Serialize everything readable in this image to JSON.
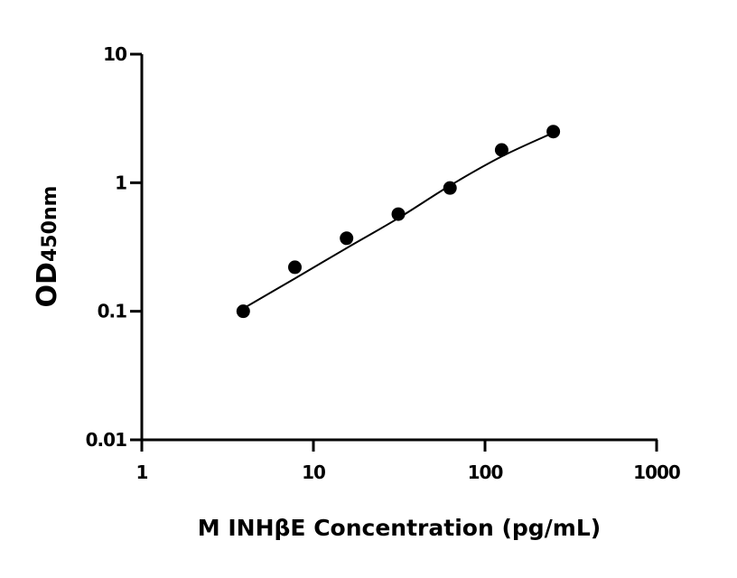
{
  "chart_data": {
    "type": "scatter",
    "title": "",
    "xlabel": "M INHβE Concentration (pg/mL)",
    "ylabel_main": "OD",
    "ylabel_sub": "450nm",
    "x_scale": "log",
    "y_scale": "log",
    "xlim": [
      1,
      1000
    ],
    "ylim": [
      0.01,
      10
    ],
    "x_ticks": [
      1,
      10,
      100,
      1000
    ],
    "x_tick_labels": [
      "1",
      "10",
      "100",
      "1000"
    ],
    "y_ticks": [
      0.01,
      0.1,
      1,
      10
    ],
    "y_tick_labels": [
      "0.01",
      "0.1",
      "1",
      "10"
    ],
    "grid": false,
    "legend": "none",
    "points": {
      "x": [
        3.9,
        7.8,
        15.6,
        31.25,
        62.5,
        125,
        250
      ],
      "y": [
        0.1,
        0.22,
        0.37,
        0.57,
        0.91,
        1.8,
        2.5
      ]
    },
    "fit_curve": {
      "x": [
        3.9,
        7.8,
        15.6,
        31.25,
        62.5,
        125,
        250
      ],
      "y": [
        0.105,
        0.18,
        0.31,
        0.53,
        0.95,
        1.6,
        2.45
      ]
    },
    "colors": {
      "marker": "#000000",
      "line": "#000000",
      "axis": "#000000"
    }
  }
}
